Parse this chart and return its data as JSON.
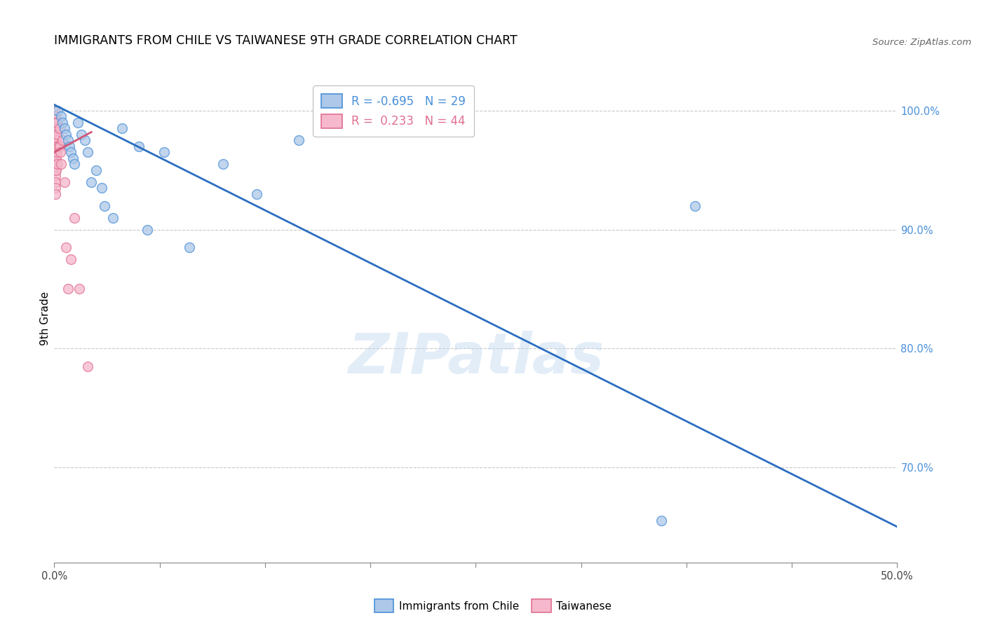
{
  "title": "IMMIGRANTS FROM CHILE VS TAIWANESE 9TH GRADE CORRELATION CHART",
  "source": "Source: ZipAtlas.com",
  "ylabel": "9th Grade",
  "right_yticks": [
    70.0,
    80.0,
    90.0,
    100.0
  ],
  "right_ytick_labels": [
    "70.0%",
    "80.0%",
    "90.0%",
    "100.0%"
  ],
  "xlim": [
    0.0,
    50.0
  ],
  "ylim": [
    62.0,
    103.0
  ],
  "blue_r": -0.695,
  "blue_n": 29,
  "pink_r": 0.233,
  "pink_n": 44,
  "blue_color": "#adc8e8",
  "blue_edge_color": "#4a90d9",
  "pink_color": "#f5b8cc",
  "pink_edge_color": "#e07090",
  "blue_line_color": "#2a6fc0",
  "pink_line_color": "#d05878",
  "blue_scatter_x": [
    0.2,
    0.4,
    0.5,
    0.6,
    0.7,
    0.8,
    0.9,
    1.0,
    1.1,
    1.2,
    1.4,
    1.6,
    1.8,
    2.0,
    2.2,
    2.5,
    2.8,
    3.0,
    3.5,
    4.0,
    5.0,
    5.5,
    6.5,
    8.0,
    10.0,
    12.0,
    14.5,
    38.0,
    36.0
  ],
  "blue_scatter_y": [
    100.0,
    99.5,
    99.0,
    98.5,
    98.0,
    97.5,
    97.0,
    96.5,
    96.0,
    95.5,
    99.0,
    98.0,
    97.5,
    96.5,
    94.0,
    95.0,
    93.5,
    92.0,
    91.0,
    98.5,
    97.0,
    90.0,
    96.5,
    88.5,
    95.5,
    93.0,
    97.5,
    92.0,
    65.5
  ],
  "pink_scatter_x": [
    0.02,
    0.02,
    0.03,
    0.03,
    0.04,
    0.04,
    0.05,
    0.05,
    0.05,
    0.05,
    0.05,
    0.05,
    0.05,
    0.05,
    0.05,
    0.05,
    0.06,
    0.06,
    0.07,
    0.07,
    0.08,
    0.08,
    0.1,
    0.1,
    0.1,
    0.1,
    0.12,
    0.15,
    0.15,
    0.2,
    0.2,
    0.25,
    0.3,
    0.3,
    0.35,
    0.4,
    0.5,
    0.6,
    0.7,
    0.8,
    1.0,
    1.2,
    1.5,
    2.0
  ],
  "pink_scatter_y": [
    100.0,
    99.5,
    99.0,
    98.5,
    98.0,
    97.5,
    97.0,
    96.8,
    96.5,
    96.0,
    95.5,
    95.0,
    94.5,
    94.0,
    93.5,
    93.0,
    99.5,
    98.5,
    97.8,
    97.2,
    99.0,
    96.5,
    98.5,
    97.5,
    96.0,
    95.0,
    97.0,
    99.0,
    96.5,
    98.0,
    95.5,
    97.0,
    98.5,
    97.0,
    96.5,
    95.5,
    97.5,
    94.0,
    88.5,
    85.0,
    87.5,
    91.0,
    85.0,
    78.5
  ],
  "blue_line_x": [
    0.0,
    50.0
  ],
  "blue_line_y": [
    100.5,
    65.0
  ],
  "pink_line_x": [
    0.0,
    2.2
  ],
  "pink_line_y": [
    96.5,
    98.2
  ],
  "watermark": "ZIPatlas",
  "marker_size": 100,
  "grid_color": "#c8c8c8",
  "grid_style": "--",
  "background_color": "#ffffff",
  "xtick_positions": [
    0,
    6.25,
    12.5,
    18.75,
    25.0,
    31.25,
    37.5,
    43.75,
    50.0
  ],
  "x_edge_labels": {
    "0": "0.0%",
    "50": "50.0%"
  }
}
